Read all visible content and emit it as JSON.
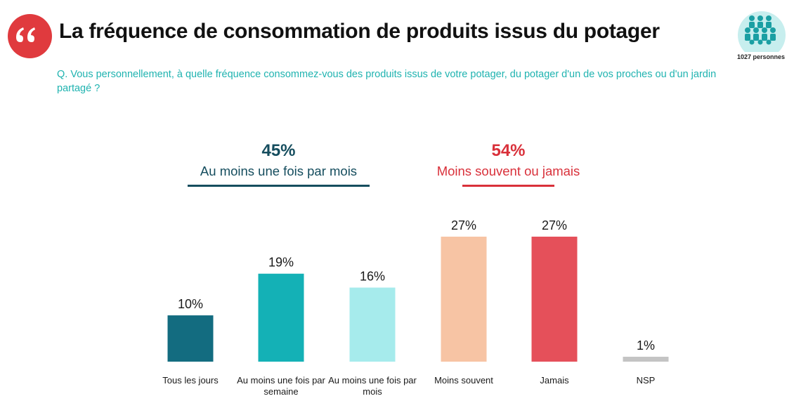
{
  "header": {
    "title": "La fréquence de consommation de produits issus du potager",
    "quote_icon": "quote-icon",
    "respondents_icon": "people-group-icon",
    "respondents_label": "1027 personnes"
  },
  "question": "Q. Vous personnellement, à quelle fréquence consommez-vous des produits issus de votre potager, du potager d'un de vos proches ou d'un jardin partagé ?",
  "groups": [
    {
      "pct": "45%",
      "label": "Au moins une fois par mois",
      "color": "#154d5e"
    },
    {
      "pct": "54%",
      "label": "Moins souvent ou jamais",
      "color": "#d9303a"
    }
  ],
  "chart_data": {
    "type": "bar",
    "categories": [
      "Tous les jours",
      "Au moins une fois par semaine",
      "Au moins une fois par mois",
      "Moins souvent",
      "Jamais",
      "NSP"
    ],
    "category_lines": [
      [
        "Tous les jours"
      ],
      [
        "Au moins une fois",
        "par semaine"
      ],
      [
        "Au moins une fois",
        "par mois"
      ],
      [
        "Moins souvent"
      ],
      [
        "Jamais"
      ],
      [
        "NSP"
      ]
    ],
    "values": [
      10,
      19,
      16,
      27,
      27,
      1
    ],
    "value_labels": [
      "10%",
      "19%",
      "16%",
      "27%",
      "27%",
      "1%"
    ],
    "colors": [
      "#136c80",
      "#14b1b6",
      "#a6ebec",
      "#f7c4a4",
      "#e5505a",
      "#c4c4c4"
    ],
    "unit": "%",
    "ylim": [
      0,
      27
    ],
    "grid": false,
    "legend": "none"
  }
}
